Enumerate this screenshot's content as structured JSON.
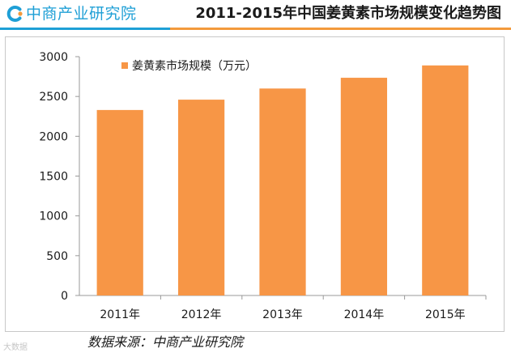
{
  "header": {
    "org_name": "中商产业研究院",
    "title": "2011-2015年中国姜黄素市场规模变化趋势图"
  },
  "chart_data": {
    "type": "bar",
    "title": "2011-2015年中国姜黄素市场规模变化趋势图",
    "categories": [
      "2011年",
      "2012年",
      "2013年",
      "2014年",
      "2015年"
    ],
    "series": [
      {
        "name": "姜黄素市场规模（万元）",
        "values": [
          2330,
          2460,
          2600,
          2735,
          2890
        ],
        "color": "#f79646"
      }
    ],
    "xlabel": "",
    "ylabel": "",
    "ylim": [
      0,
      3000
    ],
    "yticks": [
      0,
      500,
      1000,
      1500,
      2000,
      2500,
      3000
    ],
    "grid": false,
    "legend_position": "top-left"
  },
  "footer": {
    "source": "数据来源：中商产业研究院",
    "watermark": "大数据"
  },
  "colors": {
    "brand_blue": "#1e9fd6",
    "accent_orange": "#f39a3c",
    "bar": "#f79646",
    "axis": "#999999",
    "text": "#1a1a1a"
  }
}
